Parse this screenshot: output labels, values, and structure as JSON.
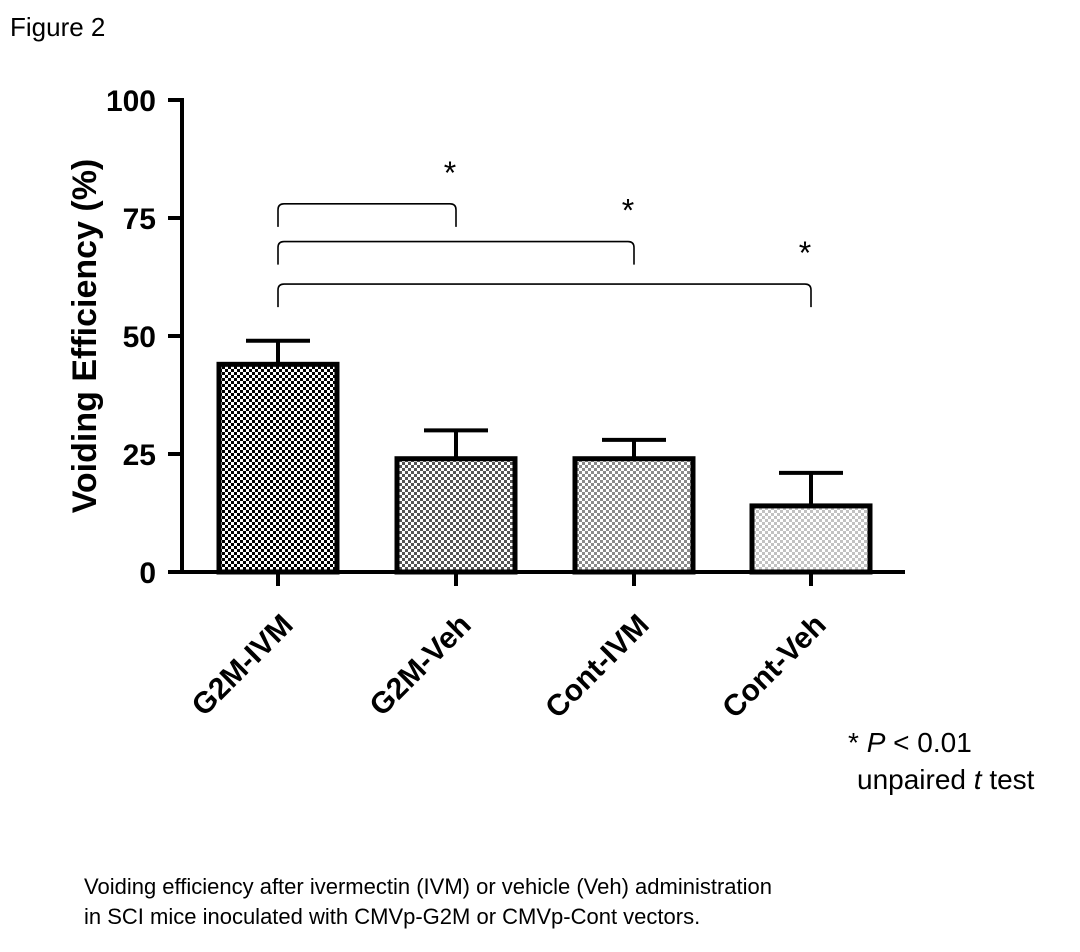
{
  "figure_label": "Figure 2",
  "caption": [
    "Voiding efficiency after ivermectin (IVM) or vehicle (Veh) administration",
    "in SCI mice inoculated with CMVp-G2M or CMVp-Cont vectors."
  ],
  "significance_note": {
    "line1_prefix": "* ",
    "line1_italic": "P",
    "line1_suffix": " < 0.01",
    "line2_prefix": "unpaired ",
    "line2_italic": "t",
    "line2_suffix": " test"
  },
  "chart_data": {
    "type": "bar",
    "title": "",
    "xlabel": "",
    "ylabel": "Voiding Efficiency (%)",
    "ylim": [
      0,
      100
    ],
    "yticks": [
      0,
      25,
      50,
      75,
      100
    ],
    "grid": false,
    "categories": [
      "G2M-IVM",
      "G2M-Veh",
      "Cont-IVM",
      "Cont-Veh"
    ],
    "values": [
      44,
      24,
      24,
      14
    ],
    "error": [
      5,
      6,
      4,
      7
    ],
    "fill_colors": [
      "#2b2b2b",
      "#5e5e5e",
      "#8a8a8a",
      "#c4c4c4"
    ],
    "significance": [
      {
        "from": "G2M-IVM",
        "to": "G2M-Veh",
        "label": "*",
        "level": 78
      },
      {
        "from": "G2M-IVM",
        "to": "Cont-IVM",
        "label": "*",
        "level": 70
      },
      {
        "from": "G2M-IVM",
        "to": "Cont-Veh",
        "label": "*",
        "level": 61
      }
    ]
  }
}
